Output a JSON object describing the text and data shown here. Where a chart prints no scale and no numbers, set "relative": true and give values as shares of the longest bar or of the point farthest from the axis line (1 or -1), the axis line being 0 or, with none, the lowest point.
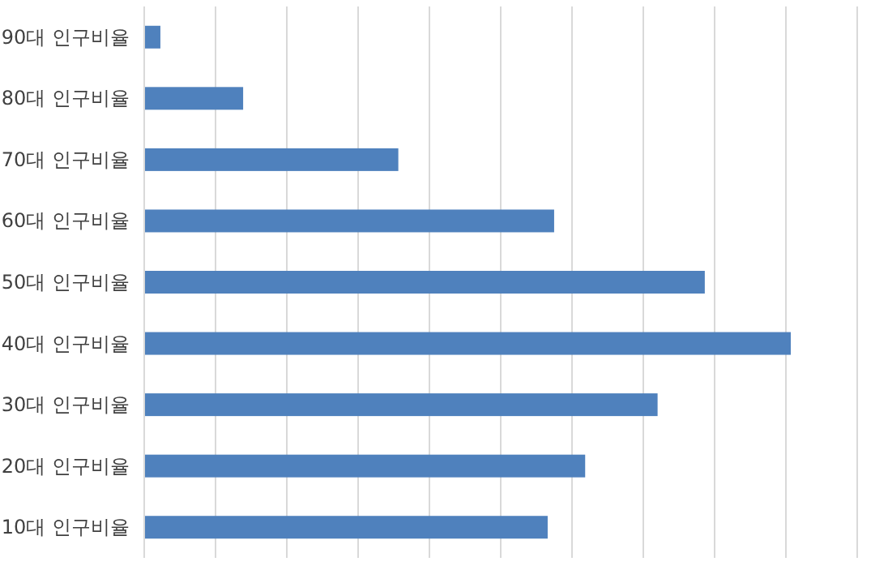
{
  "chart_data": {
    "type": "bar",
    "orientation": "horizontal",
    "relative": true,
    "grid": "x",
    "categories": [
      "90대 인구비율",
      "80대 인구비율",
      "70대 인구비율",
      "60대 인구비율",
      "50대 인구비율",
      "40대 인구비율",
      "30대 인구비율",
      "20대 인구비율",
      "10대 인구비율"
    ],
    "values": [
      0.025,
      0.153,
      0.393,
      0.634,
      0.867,
      1,
      0.794,
      0.682,
      0.624
    ],
    "color": "#4f81bd"
  }
}
